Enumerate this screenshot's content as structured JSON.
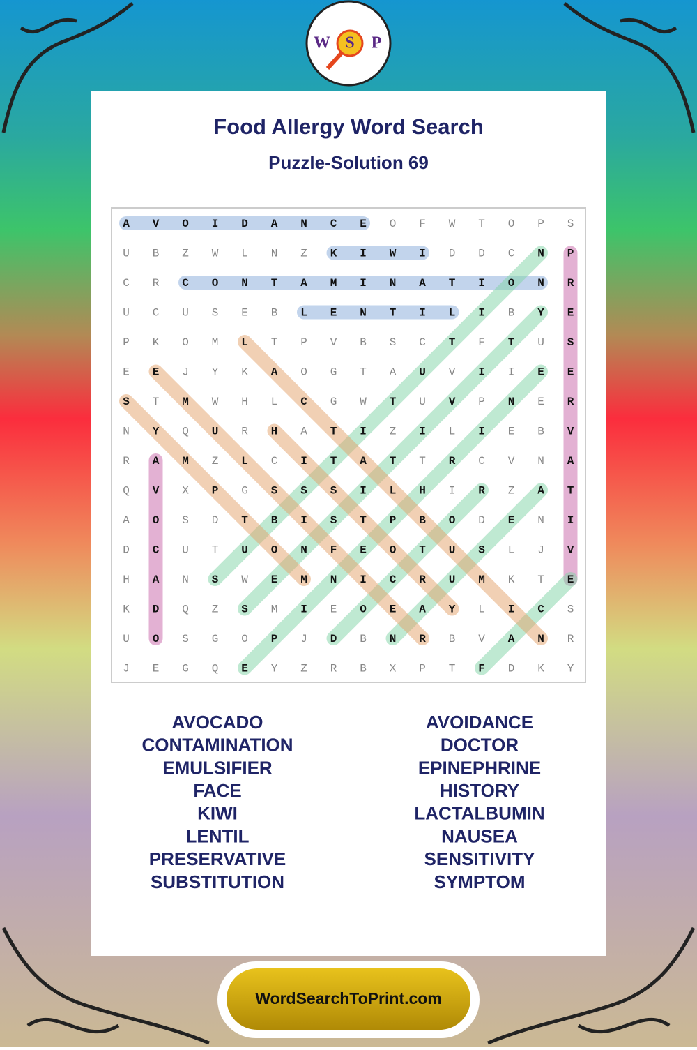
{
  "header": {
    "logo": [
      "W",
      "S",
      "P"
    ],
    "title": "Food Allergy Word Search",
    "subtitle": "Puzzle-Solution 69"
  },
  "grid": {
    "rows": [
      [
        "A",
        "V",
        "O",
        "I",
        "D",
        "A",
        "N",
        "C",
        "E",
        "O",
        "F",
        "W",
        "T",
        "O",
        "P",
        "S"
      ],
      [
        "U",
        "B",
        "Z",
        "W",
        "L",
        "N",
        "Z",
        "K",
        "I",
        "W",
        "I",
        "D",
        "D",
        "C",
        "N",
        "P"
      ],
      [
        "C",
        "R",
        "C",
        "O",
        "N",
        "T",
        "A",
        "M",
        "I",
        "N",
        "A",
        "T",
        "I",
        "O",
        "N",
        "R"
      ],
      [
        "U",
        "C",
        "U",
        "S",
        "E",
        "B",
        "L",
        "E",
        "N",
        "T",
        "I",
        "L",
        "I",
        "B",
        "Y",
        "E"
      ],
      [
        "P",
        "K",
        "O",
        "M",
        "L",
        "T",
        "P",
        "V",
        "B",
        "S",
        "C",
        "T",
        "F",
        "T",
        "U",
        "S"
      ],
      [
        "E",
        "E",
        "J",
        "Y",
        "K",
        "A",
        "O",
        "G",
        "T",
        "A",
        "U",
        "V",
        "I",
        "I",
        "E",
        "E"
      ],
      [
        "S",
        "T",
        "M",
        "W",
        "H",
        "L",
        "C",
        "G",
        "W",
        "T",
        "U",
        "V",
        "P",
        "N",
        "E",
        "R"
      ],
      [
        "N",
        "Y",
        "Q",
        "U",
        "R",
        "H",
        "A",
        "T",
        "I",
        "Z",
        "I",
        "L",
        "I",
        "E",
        "B",
        "V"
      ],
      [
        "R",
        "A",
        "M",
        "Z",
        "L",
        "C",
        "I",
        "T",
        "A",
        "T",
        "T",
        "R",
        "C",
        "V",
        "N",
        "A"
      ],
      [
        "Q",
        "V",
        "X",
        "P",
        "G",
        "S",
        "S",
        "S",
        "I",
        "L",
        "H",
        "I",
        "R",
        "Z",
        "A",
        "T"
      ],
      [
        "A",
        "O",
        "S",
        "D",
        "T",
        "B",
        "I",
        "S",
        "T",
        "P",
        "B",
        "O",
        "D",
        "E",
        "N",
        "I"
      ],
      [
        "D",
        "C",
        "U",
        "T",
        "U",
        "O",
        "N",
        "F",
        "E",
        "O",
        "T",
        "U",
        "S",
        "L",
        "J",
        "V"
      ],
      [
        "H",
        "A",
        "N",
        "S",
        "W",
        "E",
        "M",
        "N",
        "I",
        "C",
        "R",
        "U",
        "M",
        "K",
        "T",
        "E"
      ],
      [
        "K",
        "D",
        "Q",
        "Z",
        "S",
        "M",
        "I",
        "E",
        "O",
        "E",
        "A",
        "Y",
        "L",
        "I",
        "C",
        "S"
      ],
      [
        "U",
        "O",
        "S",
        "G",
        "O",
        "P",
        "J",
        "D",
        "B",
        "N",
        "R",
        "B",
        "V",
        "A",
        "N",
        "R"
      ],
      [
        "J",
        "E",
        "G",
        "Q",
        "E",
        "Y",
        "Z",
        "R",
        "B",
        "X",
        "P",
        "T",
        "F",
        "D",
        "K",
        "Y"
      ]
    ]
  },
  "words": {
    "left": [
      "AVOCADO",
      "CONTAMINATION",
      "EMULSIFIER",
      "FACE",
      "KIWI",
      "LENTIL",
      "PRESERVATIVE",
      "SUBSTITUTION"
    ],
    "right": [
      "AVOIDANCE",
      "DOCTOR",
      "EPINEPHRINE",
      "HISTORY",
      "LACTALBUMIN",
      "NAUSEA",
      "SENSITIVITY",
      "SYMPTOM"
    ]
  },
  "footer": {
    "site": "WordSearchToPrint.com"
  }
}
